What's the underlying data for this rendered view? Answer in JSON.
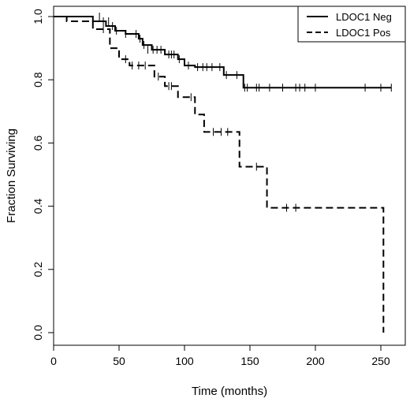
{
  "chart_data": {
    "type": "line",
    "subtype": "kaplan-meier",
    "title": "",
    "xlabel": "Time (months)",
    "ylabel": "Fraction Surviving",
    "xlim": [
      0,
      260
    ],
    "ylim": [
      0,
      1.0
    ],
    "xticks": [
      0,
      50,
      100,
      150,
      200,
      250
    ],
    "yticks": [
      0.0,
      0.2,
      0.4,
      0.6,
      0.8,
      1.0
    ],
    "xtick_labels": [
      "0",
      "50",
      "100",
      "150",
      "200",
      "250"
    ],
    "ytick_labels": [
      "0.0",
      "0.2",
      "0.4",
      "0.6",
      "0.8",
      "1.0"
    ],
    "grid": false,
    "legend": "top-right",
    "series": [
      {
        "name": "LDOC1 Neg",
        "line_style": "solid",
        "color": "#000000",
        "steps": [
          [
            0,
            1.0
          ],
          [
            30,
            0.985
          ],
          [
            40,
            0.97
          ],
          [
            47,
            0.955
          ],
          [
            55,
            0.945
          ],
          [
            65,
            0.93
          ],
          [
            68,
            0.91
          ],
          [
            75,
            0.895
          ],
          [
            85,
            0.88
          ],
          [
            95,
            0.865
          ],
          [
            100,
            0.845
          ],
          [
            108,
            0.84
          ],
          [
            130,
            0.815
          ],
          [
            145,
            0.775
          ],
          [
            258,
            0.775
          ]
        ],
        "censored": [
          [
            35,
            1.0
          ],
          [
            38,
            0.985
          ],
          [
            42,
            0.985
          ],
          [
            45,
            0.97
          ],
          [
            48,
            0.955
          ],
          [
            55,
            0.945
          ],
          [
            63,
            0.945
          ],
          [
            66,
            0.93
          ],
          [
            69,
            0.91
          ],
          [
            72,
            0.895
          ],
          [
            76,
            0.895
          ],
          [
            79,
            0.895
          ],
          [
            82,
            0.895
          ],
          [
            88,
            0.88
          ],
          [
            90,
            0.88
          ],
          [
            92,
            0.88
          ],
          [
            96,
            0.865
          ],
          [
            103,
            0.845
          ],
          [
            110,
            0.84
          ],
          [
            114,
            0.84
          ],
          [
            117,
            0.84
          ],
          [
            121,
            0.84
          ],
          [
            127,
            0.84
          ],
          [
            132,
            0.815
          ],
          [
            140,
            0.815
          ],
          [
            146,
            0.775
          ],
          [
            148,
            0.775
          ],
          [
            155,
            0.775
          ],
          [
            157,
            0.775
          ],
          [
            165,
            0.775
          ],
          [
            175,
            0.775
          ],
          [
            185,
            0.775
          ],
          [
            188,
            0.775
          ],
          [
            192,
            0.775
          ],
          [
            200,
            0.775
          ],
          [
            238,
            0.775
          ],
          [
            250,
            0.775
          ],
          [
            258,
            0.775
          ]
        ]
      },
      {
        "name": "LDOC1 Pos",
        "line_style": "dashed",
        "color": "#000000",
        "steps": [
          [
            0,
            1.0
          ],
          [
            10,
            0.985
          ],
          [
            30,
            0.96
          ],
          [
            43,
            0.9
          ],
          [
            50,
            0.865
          ],
          [
            58,
            0.845
          ],
          [
            77,
            0.81
          ],
          [
            85,
            0.78
          ],
          [
            95,
            0.745
          ],
          [
            108,
            0.69
          ],
          [
            115,
            0.635
          ],
          [
            142,
            0.525
          ],
          [
            163,
            0.395
          ],
          [
            252,
            0.0
          ]
        ],
        "censored": [
          [
            38,
            0.96
          ],
          [
            55,
            0.865
          ],
          [
            60,
            0.845
          ],
          [
            65,
            0.845
          ],
          [
            70,
            0.845
          ],
          [
            80,
            0.81
          ],
          [
            88,
            0.78
          ],
          [
            90,
            0.78
          ],
          [
            105,
            0.745
          ],
          [
            122,
            0.635
          ],
          [
            128,
            0.635
          ],
          [
            133,
            0.635
          ],
          [
            155,
            0.525
          ],
          [
            178,
            0.395
          ],
          [
            185,
            0.395
          ]
        ]
      }
    ]
  }
}
